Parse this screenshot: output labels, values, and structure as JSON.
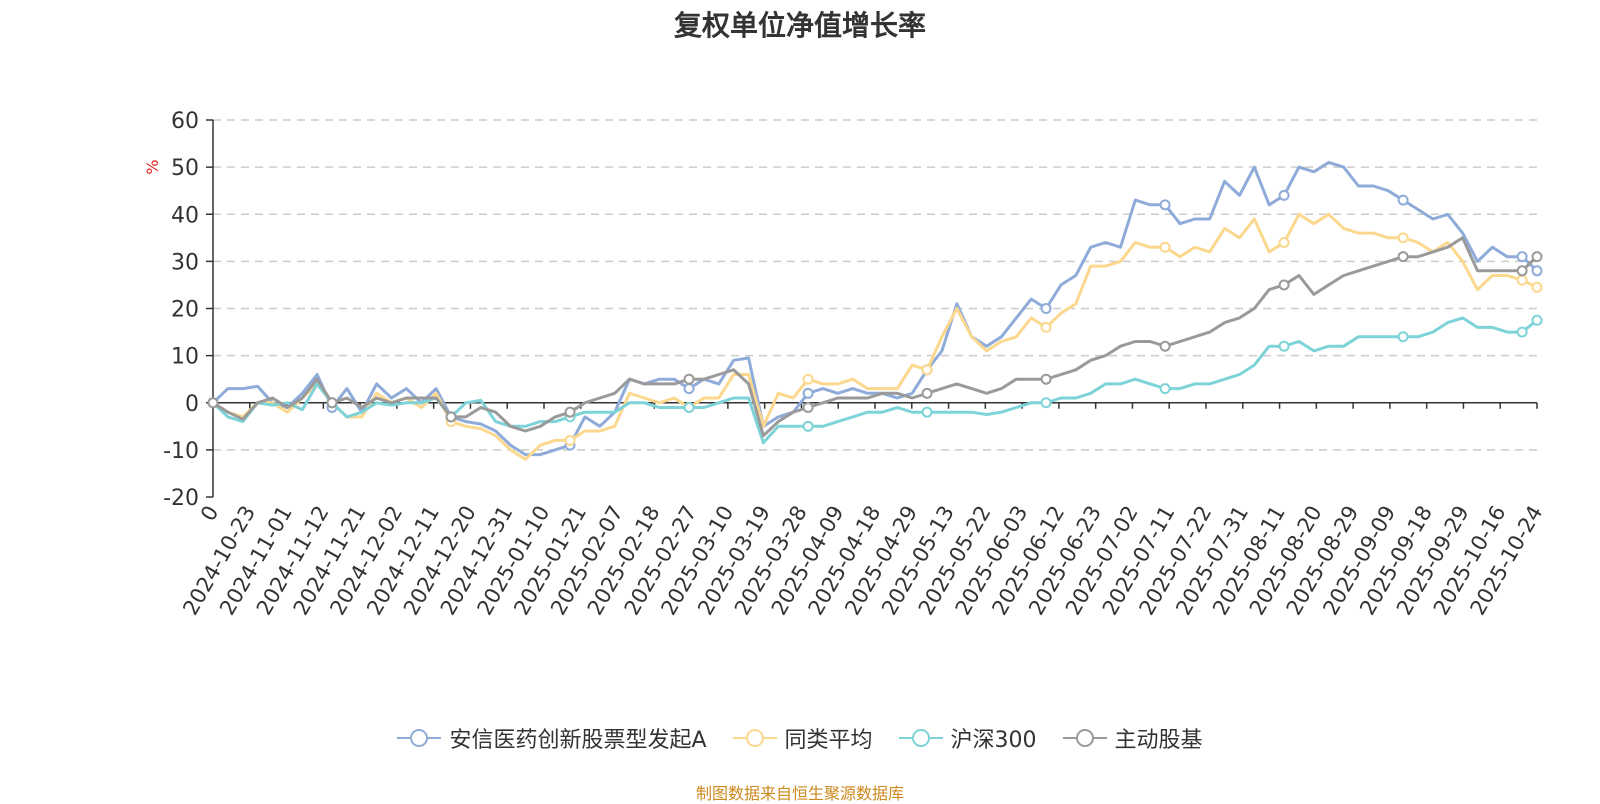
{
  "chart_data": {
    "type": "line",
    "title": "复权单位净值增长率",
    "ylabel": "%",
    "ylim": [
      -20,
      60
    ],
    "yticks": [
      -20,
      -10,
      0,
      10,
      20,
      30,
      40,
      50,
      60
    ],
    "x_tick_labels": [
      "0",
      "2024-10-23",
      "2024-11-01",
      "2024-11-12",
      "2024-11-21",
      "2024-12-02",
      "2024-12-11",
      "2024-12-20",
      "2024-12-31",
      "2025-01-10",
      "2025-01-21",
      "2025-02-07",
      "2025-02-18",
      "2025-02-27",
      "2025-03-10",
      "2025-03-19",
      "2025-03-28",
      "2025-04-09",
      "2025-04-18",
      "2025-04-29",
      "2025-05-13",
      "2025-05-22",
      "2025-06-03",
      "2025-06-12",
      "2025-06-23",
      "2025-07-02",
      "2025-07-11",
      "2025-07-22",
      "2025-07-31",
      "2025-08-11",
      "2025-08-20",
      "2025-08-29",
      "2025-09-09",
      "2025-09-18",
      "2025-09-29",
      "2025-10-16",
      "2025-10-24"
    ],
    "grid": "horizontal-dashed",
    "legend_position": "bottom",
    "series": [
      {
        "name": "安信医药创新股票型发起A",
        "color": "#8eabd9",
        "values": [
          0,
          3,
          3,
          3.5,
          0,
          -1,
          2,
          6,
          -1,
          3,
          -2,
          4,
          1,
          3,
          0,
          3,
          -3,
          -4,
          -4.5,
          -6,
          -9,
          -11,
          -11,
          -10,
          -9,
          -3,
          -5,
          -2,
          5,
          4,
          5,
          5,
          3,
          5,
          4,
          9,
          9.5,
          -5,
          -3,
          -2,
          2,
          3,
          2,
          3,
          2,
          2,
          1,
          2,
          7,
          11,
          21,
          14,
          12,
          14,
          18,
          22,
          20,
          25,
          27,
          33,
          34,
          33,
          43,
          42,
          42,
          38,
          39,
          39,
          47,
          44,
          50,
          42,
          44,
          50,
          49,
          51,
          50,
          46,
          46,
          45,
          43,
          41,
          39,
          40,
          36,
          30,
          33,
          31,
          31,
          28
        ]
      },
      {
        "name": "同类平均",
        "color": "#fcd88e",
        "values": [
          0,
          -2,
          -3,
          0,
          0,
          -2,
          1,
          4,
          0,
          -3,
          -3,
          2,
          0,
          1,
          -1,
          2,
          -4,
          -5,
          -5.5,
          -7,
          -10,
          -12,
          -9,
          -8,
          -8,
          -6,
          -6,
          -5,
          2,
          1,
          0,
          1,
          -1,
          1,
          1,
          6,
          6,
          -5,
          2,
          1,
          5,
          4,
          4,
          5,
          3,
          3,
          3,
          8,
          7,
          14,
          20,
          14,
          11,
          13,
          14,
          18,
          16,
          19,
          21,
          29,
          29,
          30,
          34,
          33,
          33,
          31,
          33,
          32,
          37,
          35,
          39,
          32,
          34,
          40,
          38,
          40,
          37,
          36,
          36,
          35,
          35,
          34,
          32,
          34,
          30,
          24,
          27,
          27,
          26,
          24.5
        ]
      },
      {
        "name": "沪深300",
        "color": "#7ed3d8",
        "values": [
          0,
          -3,
          -4,
          0,
          -0.5,
          0,
          -1.5,
          4,
          0,
          -3,
          -2,
          0,
          -0.5,
          0,
          0,
          1,
          -3,
          0,
          0.5,
          -4,
          -5,
          -5,
          -4,
          -4,
          -3,
          -2,
          -2,
          -2,
          0,
          0,
          -1,
          -1,
          -1,
          -1,
          0,
          1,
          1,
          -8.5,
          -5,
          -5,
          -5,
          -5,
          -4,
          -3,
          -2,
          -2,
          -1,
          -2,
          -2,
          -2,
          -2,
          -2,
          -2.5,
          -2,
          -1,
          0,
          0,
          1,
          1,
          2,
          4,
          4,
          5,
          4,
          3,
          3,
          4,
          4,
          5,
          6,
          8,
          12,
          12,
          13,
          11,
          12,
          12,
          14,
          14,
          14,
          14,
          14,
          15,
          17,
          18,
          16,
          16,
          15,
          15,
          17.5
        ]
      },
      {
        "name": "主动股基",
        "color": "#9a9a9a",
        "values": [
          0,
          -2,
          -3.5,
          0,
          1,
          -1,
          1,
          5,
          0,
          1,
          -1,
          1,
          0,
          1,
          1,
          1,
          -3,
          -3,
          -1,
          -2,
          -5,
          -6,
          -5,
          -3,
          -2,
          0,
          1,
          2,
          5,
          4,
          4,
          4,
          5,
          5,
          6,
          7,
          4,
          -7,
          -4,
          -2,
          -1,
          0,
          1,
          1,
          1,
          2,
          2,
          1,
          2,
          3,
          4,
          3,
          2,
          3,
          5,
          5,
          5,
          6,
          7,
          9,
          10,
          12,
          13,
          13,
          12,
          13,
          14,
          15,
          17,
          18,
          20,
          24,
          25,
          27,
          23,
          25,
          27,
          28,
          29,
          30,
          31,
          31,
          32,
          33,
          35,
          28,
          28,
          28,
          28,
          31
        ]
      }
    ]
  },
  "legend": {
    "items": [
      {
        "label": "安信医药创新股票型发起A",
        "color": "#8eabd9"
      },
      {
        "label": "同类平均",
        "color": "#fcd88e"
      },
      {
        "label": "沪深300",
        "color": "#7ed3d8"
      },
      {
        "label": "主动股基",
        "color": "#9a9a9a"
      }
    ]
  },
  "source": "制图数据来自恒生聚源数据库",
  "colors": {
    "axis": "#333333",
    "grid": "#cccccc",
    "ylabel": "#e02020",
    "source": "#cc8a1f"
  }
}
